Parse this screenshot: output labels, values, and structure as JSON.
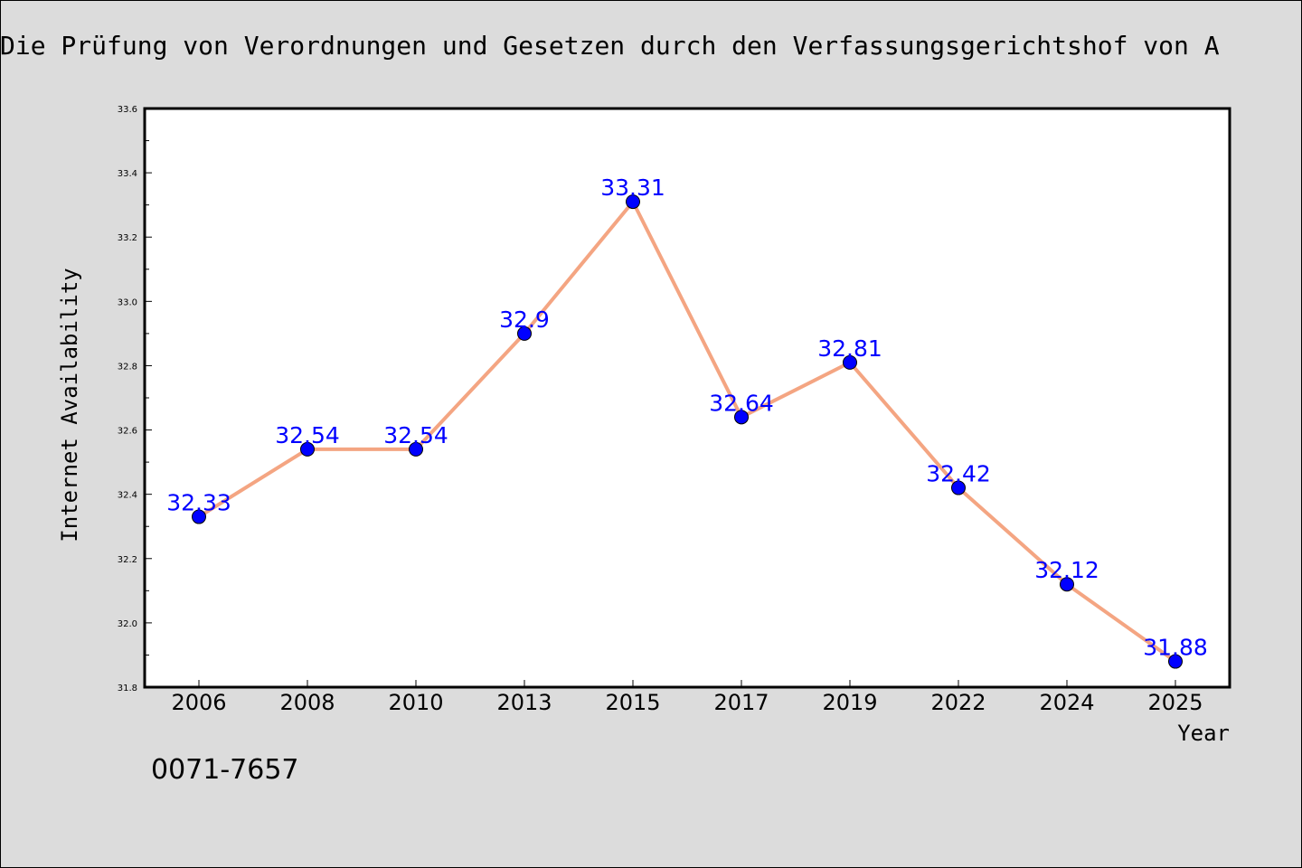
{
  "page": {
    "title": "Die Prüfung von Verordnungen und Gesetzen durch den Verfassungsgerichtshof von A",
    "footnote": "0071-7657"
  },
  "chart_data": {
    "type": "line",
    "title": "Die Prüfung von Verordnungen und Gesetzen durch den Verfassungsgerichtshof von A",
    "xlabel": "Year",
    "ylabel": "Internet Availability",
    "categories": [
      "2006",
      "2008",
      "2010",
      "2013",
      "2015",
      "2017",
      "2019",
      "2022",
      "2024",
      "2025"
    ],
    "series": [
      {
        "values": [
          32.33,
          32.54,
          32.54,
          32.9,
          33.31,
          32.64,
          32.81,
          32.42,
          32.12,
          31.88
        ],
        "labels": [
          "32.33",
          "32.54",
          "32.54",
          "32.9",
          "33.31",
          "32.64",
          "32.81",
          "32.42",
          "32.12",
          "31.88"
        ]
      }
    ],
    "ylim": [
      31.8,
      33.6
    ],
    "yticks": [
      "31.8",
      "32.0",
      "32.2",
      "32.4",
      "32.6",
      "32.8",
      "33.0",
      "33.2",
      "33.4",
      "33.6"
    ],
    "grid": false,
    "colors": {
      "line": "#f4a582",
      "marker": "#0000ff",
      "label": "#0000ff",
      "plot_bg": "#ffffff",
      "page_bg": "#dcdcdc"
    }
  }
}
